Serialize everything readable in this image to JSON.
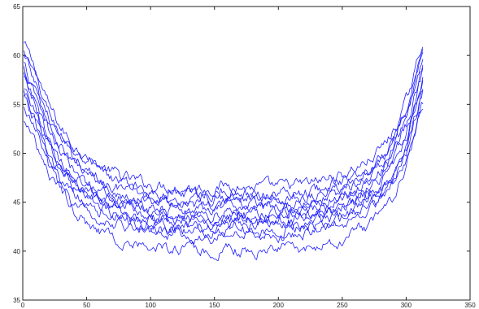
{
  "chart_data": {
    "type": "line",
    "title": "",
    "xlabel": "",
    "ylabel": "",
    "xlim": [
      0,
      350
    ],
    "ylim": [
      35,
      65
    ],
    "xticks": [
      0,
      50,
      100,
      150,
      200,
      250,
      300,
      350
    ],
    "yticks": [
      35,
      40,
      45,
      50,
      55,
      60,
      65
    ],
    "x_tick_labels": [
      "0",
      "50",
      "100",
      "150",
      "200",
      "250",
      "300",
      "350"
    ],
    "y_tick_labels": [
      "35",
      "40",
      "45",
      "50",
      "55",
      "60",
      "65"
    ],
    "grid": false,
    "legend": "none",
    "series_color": "#1f1fff",
    "x": [
      1,
      10,
      20,
      30,
      40,
      50,
      60,
      80,
      100,
      125,
      150,
      160,
      175,
      200,
      225,
      250,
      270,
      280,
      290,
      300,
      305,
      310,
      313
    ],
    "series": [
      {
        "values": [
          61.2,
          58.5,
          55.0,
          52.5,
          50.8,
          49.6,
          48.7,
          47.5,
          46.8,
          46.5,
          46.4,
          46.8,
          46.5,
          46.6,
          46.9,
          47.8,
          49.2,
          50.4,
          52.2,
          55.2,
          57.4,
          59.8,
          61.0
        ]
      },
      {
        "values": [
          60.3,
          57.6,
          54.2,
          51.8,
          50.2,
          49.0,
          48.0,
          46.9,
          46.1,
          45.8,
          45.8,
          46.2,
          45.9,
          45.9,
          46.2,
          47.1,
          48.5,
          49.7,
          51.5,
          54.5,
          56.7,
          59.0,
          60.5
        ]
      },
      {
        "values": [
          59.8,
          57.0,
          53.7,
          51.2,
          49.6,
          48.3,
          47.4,
          46.3,
          45.6,
          45.3,
          45.3,
          45.7,
          45.4,
          45.4,
          45.7,
          46.6,
          48.0,
          49.1,
          51.0,
          53.9,
          56.1,
          58.5,
          59.9
        ]
      },
      {
        "values": [
          59.0,
          56.2,
          52.9,
          50.5,
          48.9,
          47.8,
          46.9,
          45.8,
          45.1,
          44.8,
          44.8,
          45.2,
          44.9,
          44.9,
          45.2,
          46.1,
          47.5,
          48.6,
          50.5,
          53.4,
          55.6,
          58.0,
          59.4
        ]
      },
      {
        "values": [
          58.5,
          55.6,
          52.3,
          49.9,
          48.3,
          47.2,
          46.3,
          45.2,
          44.5,
          44.3,
          44.3,
          44.7,
          44.4,
          44.4,
          44.7,
          45.6,
          47.0,
          48.1,
          50.0,
          52.9,
          55.1,
          57.5,
          58.9
        ]
      },
      {
        "values": [
          57.8,
          54.8,
          51.5,
          49.2,
          47.7,
          46.6,
          45.8,
          44.7,
          44.0,
          43.8,
          43.7,
          44.1,
          43.8,
          43.9,
          44.2,
          45.1,
          46.5,
          47.6,
          49.5,
          52.3,
          54.5,
          56.8,
          58.2
        ]
      },
      {
        "values": [
          57.0,
          54.0,
          50.8,
          48.5,
          47.0,
          46.0,
          45.2,
          44.2,
          43.6,
          43.4,
          43.3,
          43.8,
          43.4,
          43.5,
          43.8,
          44.7,
          46.0,
          47.1,
          48.9,
          51.7,
          53.9,
          56.2,
          57.6
        ]
      },
      {
        "values": [
          56.2,
          53.2,
          50.0,
          47.8,
          46.4,
          45.4,
          44.7,
          43.8,
          43.2,
          43.0,
          42.9,
          43.4,
          43.0,
          43.1,
          43.4,
          44.3,
          45.6,
          46.7,
          48.4,
          51.2,
          53.3,
          55.6,
          57.0
        ]
      },
      {
        "values": [
          55.0,
          52.2,
          49.1,
          47.0,
          45.7,
          44.8,
          44.1,
          43.3,
          42.8,
          42.6,
          42.5,
          43.0,
          42.7,
          42.7,
          43.0,
          43.8,
          45.1,
          46.1,
          47.8,
          50.5,
          52.6,
          54.8,
          56.2
        ]
      },
      {
        "values": [
          53.5,
          50.8,
          48.0,
          46.0,
          44.8,
          44.0,
          43.4,
          42.6,
          42.2,
          42.0,
          41.9,
          42.4,
          42.1,
          42.1,
          42.4,
          43.2,
          44.4,
          45.4,
          47.0,
          49.6,
          51.6,
          53.8,
          55.1
        ]
      },
      {
        "values": [
          58.0,
          55.0,
          51.2,
          48.6,
          46.9,
          45.7,
          44.7,
          43.2,
          42.2,
          41.5,
          41.2,
          41.9,
          41.4,
          41.4,
          41.8,
          42.8,
          44.2,
          45.3,
          47.2,
          50.0,
          52.3,
          54.8,
          56.5
        ]
      },
      {
        "values": [
          56.5,
          53.0,
          49.0,
          46.2,
          44.3,
          43.0,
          42.0,
          41.0,
          40.4,
          40.2,
          39.9,
          40.2,
          39.9,
          40.1,
          40.4,
          41.2,
          42.6,
          43.7,
          45.7,
          48.8,
          51.2,
          53.6,
          54.8
        ]
      }
    ]
  }
}
